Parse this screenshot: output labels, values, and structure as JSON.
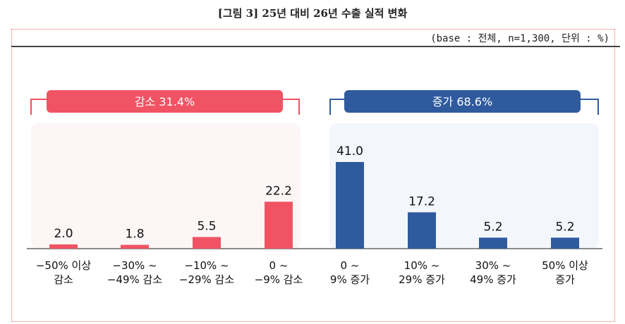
{
  "title": "[그림 3] 25년 대비 26년 수출 실적 변화",
  "base_note": "(base : 전체, n=1,300, 단위 : %)",
  "groups": {
    "decrease": {
      "label": "감소 31.4%",
      "color": "#f05464"
    },
    "increase": {
      "label": "증가 68.6%",
      "color": "#2f5b9e"
    }
  },
  "chart_data": {
    "type": "bar",
    "categories": [
      [
        "−50% 이상",
        "감소"
      ],
      [
        "−30% ~",
        "−49% 감소"
      ],
      [
        "−10% ~",
        "−29% 감소"
      ],
      [
        "0 ~",
        "−9% 감소"
      ],
      [
        "0 ~",
        "9% 증가"
      ],
      [
        "10% ~",
        "29% 증가"
      ],
      [
        "30% ~",
        "49% 증가"
      ],
      [
        "50% 이상",
        "증가"
      ]
    ],
    "values": [
      2.0,
      1.8,
      5.5,
      22.2,
      41.0,
      17.2,
      5.2,
      5.2
    ],
    "bar_group": [
      "decrease",
      "decrease",
      "decrease",
      "decrease",
      "increase",
      "increase",
      "increase",
      "increase"
    ],
    "ylim": [
      0,
      41.0
    ],
    "grid": false,
    "legend": "none"
  }
}
